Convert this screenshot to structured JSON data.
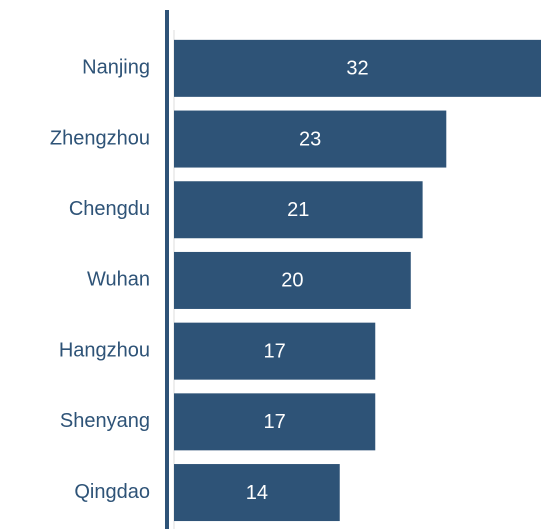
{
  "chart_data": {
    "type": "barh",
    "categories": [
      "Nanjing",
      "Zhengzhou",
      "Chengdu",
      "Wuhan",
      "Hangzhou",
      "Shenyang",
      "Qingdao"
    ],
    "values": [
      32,
      23,
      21,
      20,
      17,
      17,
      14
    ],
    "color": "#2e5377",
    "xlim": [
      0,
      31
    ]
  }
}
